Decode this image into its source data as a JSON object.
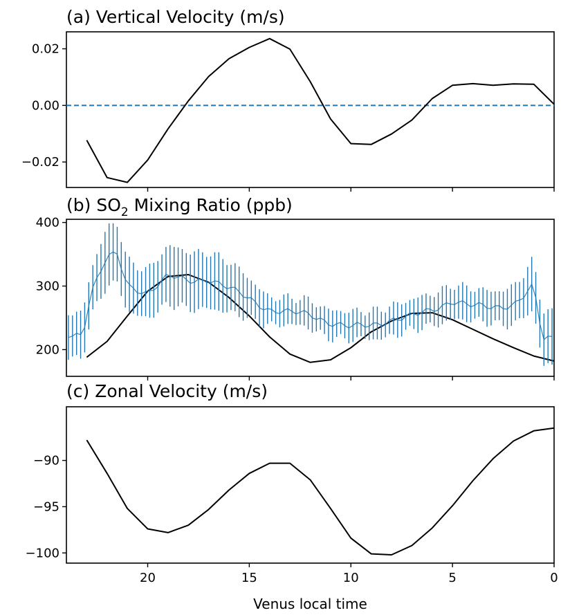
{
  "chart_data": [
    {
      "panel": "a",
      "type": "line",
      "title": "(a) Vertical Velocity (m/s)",
      "xlim": [
        24,
        0
      ],
      "ylim": [
        -0.029,
        0.026
      ],
      "yticks": [
        -0.02,
        0.0,
        0.02
      ],
      "ytick_labels": [
        "−0.02",
        "0.00",
        "0.02"
      ],
      "xticks": [
        20,
        15,
        10,
        5,
        0
      ],
      "show_xtick_labels": false,
      "reference_line": {
        "y": 0.0,
        "style": "dashed",
        "color": "#1f77b4"
      },
      "series": [
        {
          "color": "#000000",
          "x": [
            23,
            22,
            21,
            20,
            19,
            18,
            17,
            16,
            15,
            14,
            13,
            12,
            11,
            10,
            9,
            8,
            7,
            6,
            5,
            4,
            3,
            2,
            1,
            0
          ],
          "y": [
            -0.0123,
            -0.0255,
            -0.0272,
            -0.0193,
            -0.0083,
            0.0016,
            0.0102,
            0.0165,
            0.0205,
            0.0236,
            0.0199,
            0.0084,
            -0.0048,
            -0.0135,
            -0.0138,
            -0.0101,
            -0.0052,
            0.0024,
            0.0071,
            0.0077,
            0.0071,
            0.0076,
            0.0075,
            0.0004
          ]
        }
      ]
    },
    {
      "panel": "b",
      "type": "line",
      "title_prefix": "(b) SO",
      "title_sub": "2",
      "title_suffix": " Mixing Ratio (ppb)",
      "xlim": [
        24,
        0
      ],
      "ylim": [
        158,
        405
      ],
      "yticks": [
        200,
        300,
        400
      ],
      "ytick_labels": [
        "200",
        "300",
        "400"
      ],
      "xticks": [
        20,
        15,
        10,
        5,
        0
      ],
      "show_xtick_labels": false,
      "series": [
        {
          "color": "#000000",
          "x": [
            23,
            22,
            21,
            20,
            19,
            18,
            17,
            16,
            15,
            14,
            13,
            12,
            11,
            10,
            9,
            8,
            7,
            6,
            5,
            4,
            3,
            2,
            1,
            0
          ],
          "y": [
            188,
            213,
            253,
            292,
            315,
            318,
            306,
            282,
            253,
            220,
            193,
            180,
            184,
            203,
            228,
            245,
            257,
            258,
            247,
            232,
            217,
            203,
            190,
            182
          ]
        },
        {
          "color": "#1f77b4",
          "style": "errorbar",
          "knots_x": [
            24,
            23.2,
            22.8,
            22.0,
            21.5,
            21.0,
            20.0,
            19.0,
            18.0,
            17.0,
            16.0,
            15.0,
            14.0,
            13.0,
            12.0,
            11.0,
            10.0,
            9.0,
            8.0,
            7.0,
            6.0,
            5.0,
            4.0,
            3.0,
            2.0,
            1.5,
            1.0,
            0.8,
            0.5,
            0
          ],
          "knots_y": [
            223,
            225,
            290,
            345,
            348,
            300,
            290,
            315,
            308,
            312,
            296,
            280,
            263,
            258,
            255,
            243,
            235,
            238,
            248,
            252,
            262,
            278,
            268,
            266,
            272,
            285,
            300,
            255,
            215,
            218
          ],
          "knots_err": [
            37,
            35,
            37,
            46,
            47,
            40,
            38,
            46,
            45,
            44,
            40,
            32,
            22,
            21,
            22,
            22,
            22,
            22,
            24,
            24,
            25,
            27,
            25,
            25,
            30,
            34,
            40,
            38,
            45,
            40
          ]
        }
      ]
    },
    {
      "panel": "c",
      "type": "line",
      "title": "(c) Zonal Velocity (m/s)",
      "xlim": [
        24,
        0
      ],
      "ylim": [
        -101.1,
        -84.2
      ],
      "yticks": [
        -100,
        -95,
        -90
      ],
      "ytick_labels": [
        "−100",
        "−95",
        "−90"
      ],
      "xticks": [
        20,
        15,
        10,
        5,
        0
      ],
      "xtick_labels": [
        "20",
        "15",
        "10",
        "5",
        "0"
      ],
      "xlabel": "Venus local time",
      "series": [
        {
          "color": "#000000",
          "x": [
            23,
            22,
            21,
            20,
            19,
            18,
            17,
            16,
            15,
            14,
            13,
            12,
            11,
            10,
            9,
            8,
            7,
            6,
            5,
            4,
            3,
            2,
            1,
            0
          ],
          "y": [
            -87.8,
            -91.4,
            -95.2,
            -97.4,
            -97.8,
            -97.0,
            -95.3,
            -93.2,
            -91.4,
            -90.3,
            -90.3,
            -92.1,
            -95.2,
            -98.4,
            -100.1,
            -100.2,
            -99.2,
            -97.3,
            -94.9,
            -92.2,
            -89.8,
            -87.9,
            -86.8,
            -86.5
          ]
        }
      ]
    }
  ]
}
